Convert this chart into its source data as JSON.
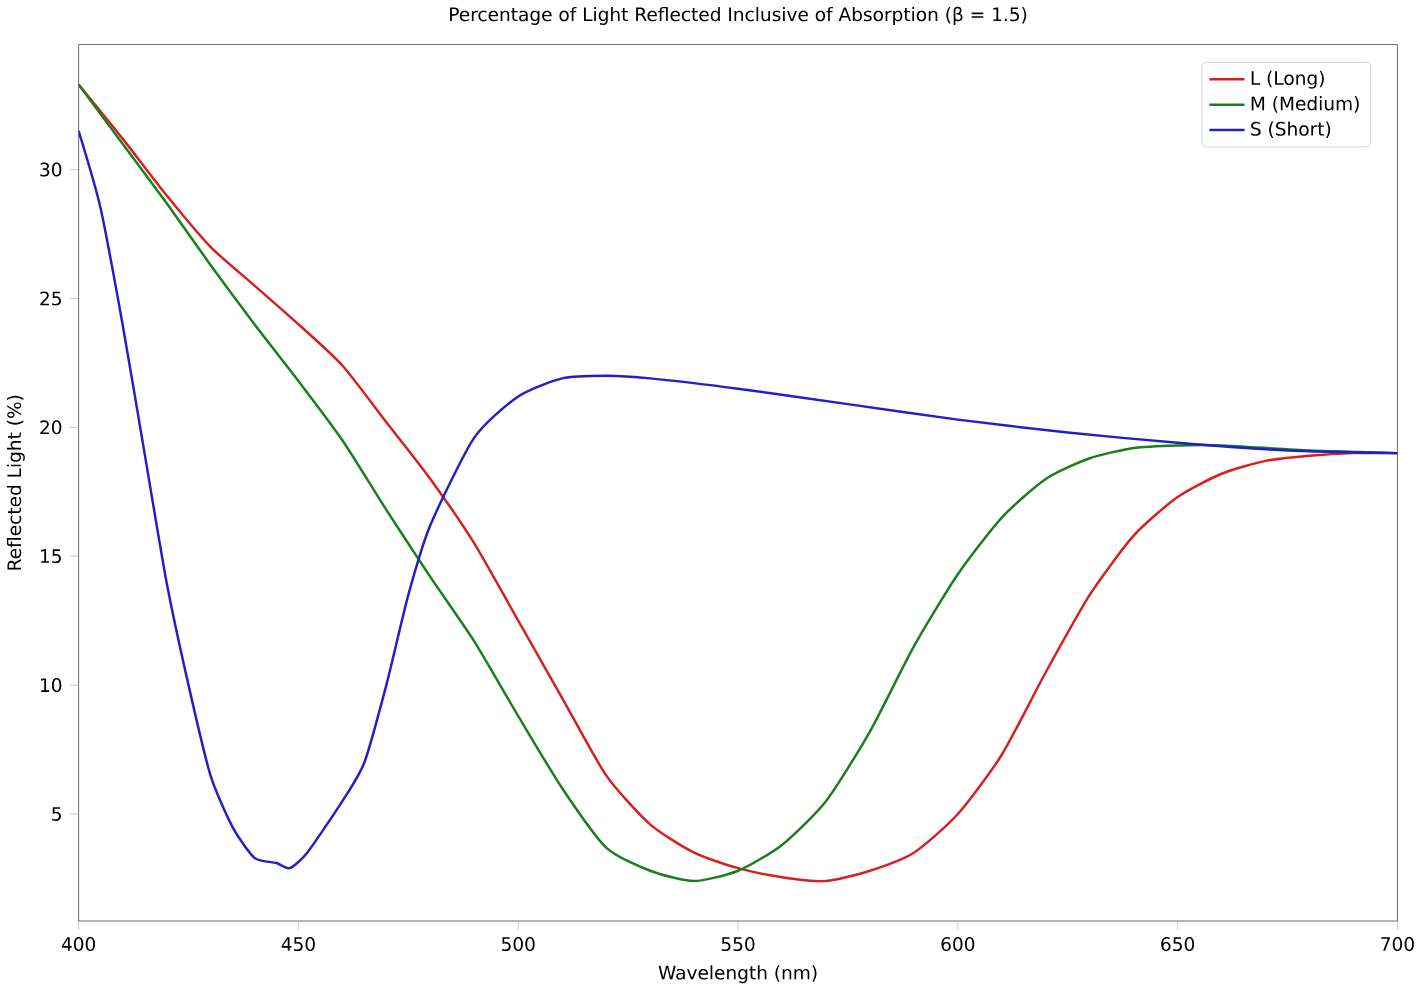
{
  "chart_data": {
    "type": "line",
    "title": "Percentage of Light Reflected Inclusive of Absorption (β = 1.5)",
    "xlabel": "Wavelength (nm)",
    "ylabel": "Reflected Light (%)",
    "xlim": [
      400,
      700
    ],
    "xticks": [
      400,
      450,
      500,
      550,
      600,
      650,
      700
    ],
    "ylim": [
      0.85,
      34.85
    ],
    "yticks": [
      5,
      10,
      15,
      20,
      25,
      30
    ],
    "legend": "top right",
    "grid": false,
    "series": [
      {
        "name": "L (Long)",
        "color": "#d62020",
        "x": [
          400,
          410,
          420,
          430,
          440,
          450,
          460,
          470,
          480,
          490,
          500,
          510,
          520,
          530,
          540,
          550,
          560,
          570,
          580,
          590,
          600,
          610,
          620,
          630,
          640,
          650,
          660,
          670,
          680,
          690,
          700
        ],
        "values": [
          33.3,
          31.2,
          29,
          27,
          25.5,
          24.0,
          22.4,
          20.2,
          18.0,
          15.5,
          12.5,
          9.5,
          6.5,
          4.6,
          3.5,
          2.9,
          2.55,
          2.4,
          2.8,
          3.5,
          5,
          7.3,
          10.5,
          13.5,
          15.8,
          17.3,
          18.2,
          18.7,
          18.9,
          19.0,
          19.0
        ]
      },
      {
        "name": "M (Medium)",
        "color": "#1a7f1a",
        "x": [
          400,
          410,
          420,
          430,
          440,
          450,
          460,
          470,
          480,
          490,
          500,
          510,
          520,
          530,
          540,
          550,
          560,
          570,
          580,
          590,
          600,
          610,
          620,
          630,
          640,
          650,
          660,
          680,
          700
        ],
        "values": [
          33.3,
          31,
          28.7,
          26.3,
          24,
          21.8,
          19.5,
          16.8,
          14.2,
          11.7,
          8.8,
          6.0,
          3.7,
          2.8,
          2.4,
          2.8,
          3.8,
          5.5,
          8.2,
          11.5,
          14.3,
          16.5,
          18.0,
          18.8,
          19.2,
          19.3,
          19.3,
          19.1,
          19.0
        ]
      },
      {
        "name": "S (Short)",
        "color": "#2020c8",
        "x": [
          400,
          405,
          410,
          415,
          420,
          425,
          430,
          435,
          440,
          445,
          448,
          452,
          460,
          465,
          470,
          475,
          480,
          490,
          500,
          510,
          520,
          530,
          550,
          575,
          600,
          625,
          650,
          675,
          700
        ],
        "values": [
          31.5,
          28.5,
          24,
          19,
          14,
          10,
          6.5,
          4.5,
          3.3,
          3.1,
          2.9,
          3.5,
          5.5,
          7,
          10,
          13.5,
          16.2,
          19.6,
          21.2,
          21.9,
          22.0,
          21.9,
          21.5,
          20.9,
          20.3,
          19.8,
          19.4,
          19.1,
          19.0
        ]
      }
    ]
  }
}
